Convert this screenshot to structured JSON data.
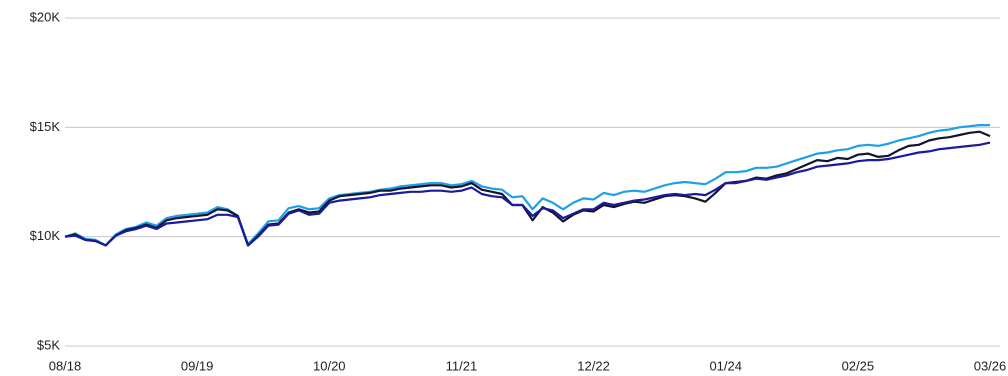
{
  "chart_data": {
    "type": "line",
    "categories": [
      "08/18",
      null,
      null,
      null,
      null,
      null,
      null,
      null,
      null,
      null,
      null,
      null,
      null,
      "09/19",
      null,
      null,
      null,
      null,
      null,
      null,
      null,
      null,
      null,
      null,
      null,
      null,
      "10/20",
      null,
      null,
      null,
      null,
      null,
      null,
      null,
      null,
      null,
      null,
      null,
      null,
      "11/21",
      null,
      null,
      null,
      null,
      null,
      null,
      null,
      null,
      null,
      null,
      null,
      null,
      "12/22",
      null,
      null,
      null,
      null,
      null,
      null,
      null,
      null,
      null,
      null,
      null,
      null,
      "01/24",
      null,
      null,
      null,
      null,
      null,
      null,
      null,
      null,
      null,
      null,
      null,
      null,
      "02/25",
      null,
      null,
      null,
      null,
      null,
      null,
      null,
      null,
      null,
      null,
      null,
      null,
      "03/26"
    ],
    "series": [
      {
        "color": "#1ea0e6",
        "values": [
          10000,
          10150,
          9900,
          9850,
          9600,
          10100,
          10350,
          10450,
          10650,
          10500,
          10850,
          10950,
          11000,
          11050,
          11100,
          11350,
          11250,
          10950,
          9650,
          10150,
          10700,
          10750,
          11300,
          11400,
          11250,
          11300,
          11750,
          11900,
          11950,
          12000,
          12050,
          12150,
          12200,
          12300,
          12350,
          12400,
          12450,
          12450,
          12350,
          12400,
          12550,
          12300,
          12200,
          12150,
          11800,
          11850,
          11250,
          11750,
          11550,
          11250,
          11550,
          11750,
          11700,
          12000,
          11900,
          12050,
          12100,
          12050,
          12200,
          12350,
          12450,
          12500,
          12450,
          12400,
          12650,
          12950,
          12950,
          13000,
          13150,
          13150,
          13200,
          13350,
          13500,
          13650,
          13800,
          13850,
          13950,
          14000,
          14150,
          14200,
          14150,
          14250,
          14400,
          14500,
          14600,
          14750,
          14850,
          14900,
          15000,
          15050,
          15100,
          15100
        ]
      },
      {
        "color": "#15142e",
        "values": [
          10000,
          10100,
          9850,
          9800,
          9600,
          10050,
          10300,
          10400,
          10550,
          10400,
          10750,
          10850,
          10900,
          10950,
          11000,
          11250,
          11200,
          10950,
          9600,
          10050,
          10550,
          10600,
          11100,
          11250,
          11100,
          11150,
          11650,
          11850,
          11900,
          11950,
          12000,
          12100,
          12100,
          12200,
          12250,
          12300,
          12350,
          12350,
          12250,
          12300,
          12450,
          12150,
          12050,
          11950,
          11450,
          11450,
          10750,
          11350,
          11100,
          10700,
          11000,
          11200,
          11150,
          11450,
          11350,
          11500,
          11600,
          11550,
          11700,
          11850,
          11900,
          11850,
          11750,
          11600,
          12000,
          12450,
          12500,
          12550,
          12700,
          12650,
          12800,
          12900,
          13100,
          13300,
          13500,
          13450,
          13600,
          13550,
          13750,
          13800,
          13650,
          13700,
          13950,
          14150,
          14200,
          14400,
          14500,
          14550,
          14650,
          14750,
          14800,
          14600
        ]
      },
      {
        "color": "#1c1a9c",
        "values": [
          10000,
          10050,
          9850,
          9800,
          9600,
          10050,
          10250,
          10350,
          10500,
          10350,
          10600,
          10650,
          10700,
          10750,
          10800,
          11000,
          11000,
          10900,
          9600,
          10000,
          10500,
          10550,
          11050,
          11200,
          11000,
          11050,
          11550,
          11650,
          11700,
          11750,
          11800,
          11900,
          11950,
          12000,
          12050,
          12050,
          12100,
          12100,
          12050,
          12100,
          12250,
          11950,
          11850,
          11800,
          11450,
          11450,
          10950,
          11300,
          11200,
          10850,
          11050,
          11250,
          11250,
          11550,
          11450,
          11550,
          11650,
          11700,
          11800,
          11900,
          11950,
          11900,
          11950,
          11900,
          12150,
          12450,
          12450,
          12550,
          12650,
          12600,
          12700,
          12800,
          12950,
          13050,
          13200,
          13250,
          13300,
          13350,
          13450,
          13500,
          13500,
          13550,
          13650,
          13750,
          13850,
          13900,
          14000,
          14050,
          14100,
          14150,
          14200,
          14300
        ]
      }
    ],
    "ylim": [
      5000,
      20000
    ],
    "yticks": [
      {
        "value": 5000,
        "label": "$5K"
      },
      {
        "value": 10000,
        "label": "$10K"
      },
      {
        "value": 15000,
        "label": "$15K"
      },
      {
        "value": 20000,
        "label": "$20K"
      }
    ],
    "grid": true
  }
}
